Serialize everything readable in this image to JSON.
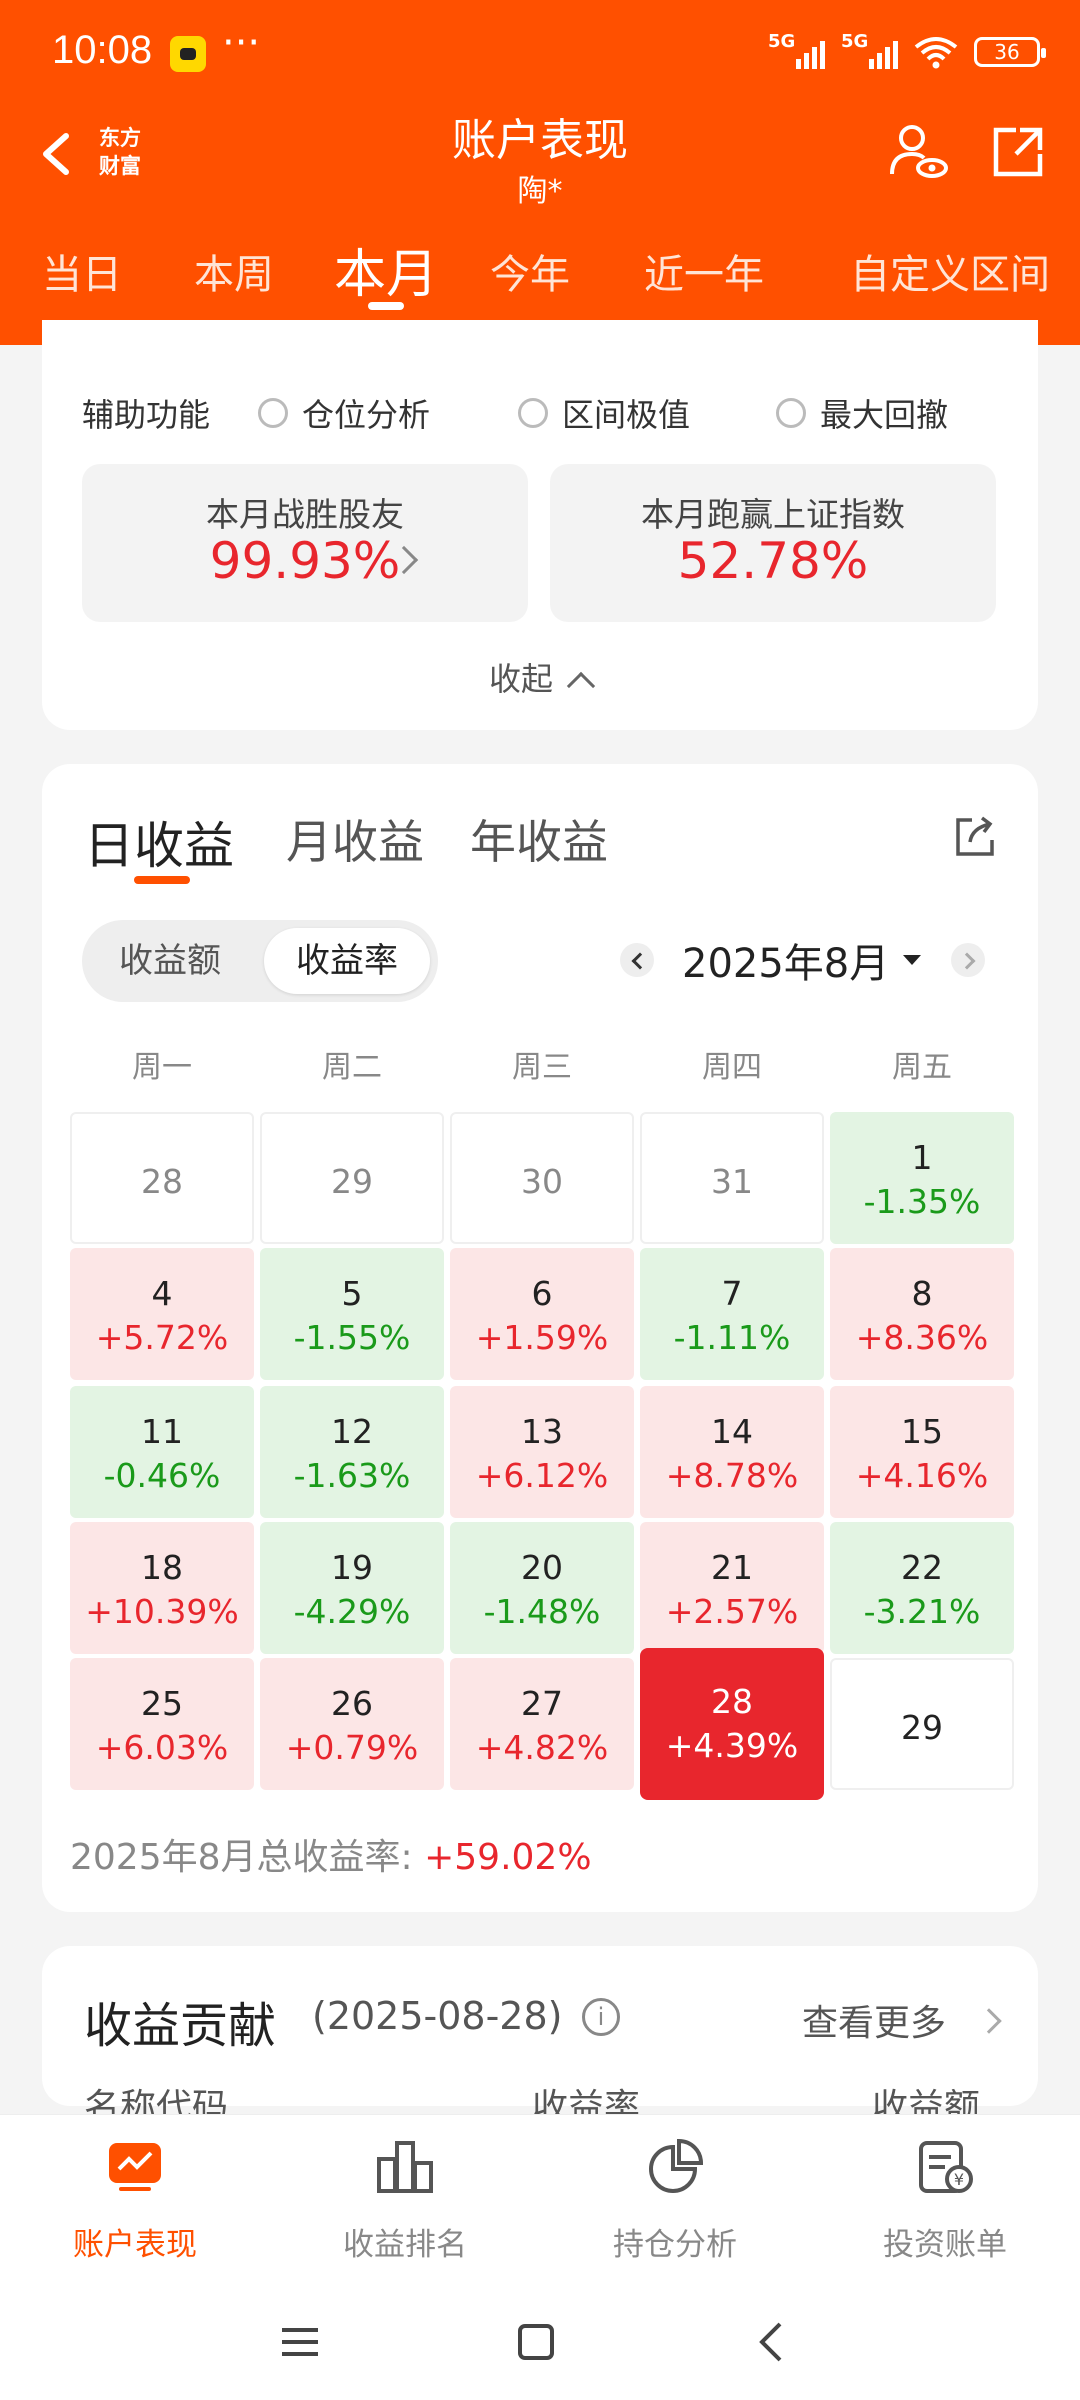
{
  "status_bar": {
    "time": "10:08",
    "dots": "···",
    "signal1": "5G",
    "signal2": "5G",
    "battery": "36"
  },
  "header": {
    "logo_line1": "东方",
    "logo_line2": "财富",
    "title": "账户表现",
    "subtitle": "陶*"
  },
  "period_tabs": [
    {
      "label": "当日",
      "active": false
    },
    {
      "label": "本周",
      "active": false
    },
    {
      "label": "本月",
      "active": true
    },
    {
      "label": "今年",
      "active": false
    },
    {
      "label": "近一年",
      "active": false
    },
    {
      "label": "自定义区间",
      "active": false
    }
  ],
  "aux": {
    "label": "辅助功能",
    "options": [
      "仓位分析",
      "区间极值",
      "最大回撤"
    ],
    "stat1": {
      "label": "本月战胜股友",
      "value": "99.93%"
    },
    "stat2": {
      "label": "本月跑赢上证指数",
      "value": "52.78%"
    },
    "collapse": "收起"
  },
  "profit": {
    "tabs": [
      "日收益",
      "月收益",
      "年收益"
    ],
    "toggle": [
      "收益额",
      "收益率"
    ],
    "toggle_active": "收益率",
    "month": "2025年8月",
    "weekdays": [
      "周一",
      "周二",
      "周三",
      "周四",
      "周五"
    ],
    "days": [
      {
        "d": "28",
        "p": "",
        "t": "other"
      },
      {
        "d": "29",
        "p": "",
        "t": "other"
      },
      {
        "d": "30",
        "p": "",
        "t": "other"
      },
      {
        "d": "31",
        "p": "",
        "t": "other"
      },
      {
        "d": "1",
        "p": "-1.35%",
        "t": "down"
      },
      {
        "d": "4",
        "p": "+5.72%",
        "t": "up"
      },
      {
        "d": "5",
        "p": "-1.55%",
        "t": "down"
      },
      {
        "d": "6",
        "p": "+1.59%",
        "t": "up"
      },
      {
        "d": "7",
        "p": "-1.11%",
        "t": "down"
      },
      {
        "d": "8",
        "p": "+8.36%",
        "t": "up"
      },
      {
        "d": "11",
        "p": "-0.46%",
        "t": "down"
      },
      {
        "d": "12",
        "p": "-1.63%",
        "t": "down"
      },
      {
        "d": "13",
        "p": "+6.12%",
        "t": "up"
      },
      {
        "d": "14",
        "p": "+8.78%",
        "t": "up"
      },
      {
        "d": "15",
        "p": "+4.16%",
        "t": "up"
      },
      {
        "d": "18",
        "p": "+10.39%",
        "t": "up"
      },
      {
        "d": "19",
        "p": "-4.29%",
        "t": "down"
      },
      {
        "d": "20",
        "p": "-1.48%",
        "t": "down"
      },
      {
        "d": "21",
        "p": "+2.57%",
        "t": "up"
      },
      {
        "d": "22",
        "p": "-3.21%",
        "t": "down"
      },
      {
        "d": "25",
        "p": "+6.03%",
        "t": "up"
      },
      {
        "d": "26",
        "p": "+0.79%",
        "t": "up"
      },
      {
        "d": "27",
        "p": "+4.82%",
        "t": "up"
      },
      {
        "d": "28",
        "p": "+4.39%",
        "t": "sel"
      },
      {
        "d": "29",
        "p": "",
        "t": "empty"
      }
    ],
    "total_label": "2025年8月总收益率:",
    "total_value": "+59.02%"
  },
  "contribution": {
    "title": "收益贡献",
    "date": "(2025-08-28)",
    "info": "i",
    "more": "查看更多",
    "columns": [
      "名称代码",
      "收益率",
      "收益额"
    ]
  },
  "bottom_nav": [
    {
      "label": "账户表现",
      "icon": "chart-monitor-icon",
      "active": true
    },
    {
      "label": "收益排名",
      "icon": "bar-ranking-icon",
      "active": false
    },
    {
      "label": "持仓分析",
      "icon": "pie-chart-icon",
      "active": false
    },
    {
      "label": "投资账单",
      "icon": "bill-icon",
      "active": false
    }
  ],
  "colors": {
    "brand": "#ff5000",
    "up": "#e8262d",
    "down": "#1a9a1a",
    "up_bg": "#fce6e6",
    "down_bg": "#e3f4e3"
  }
}
